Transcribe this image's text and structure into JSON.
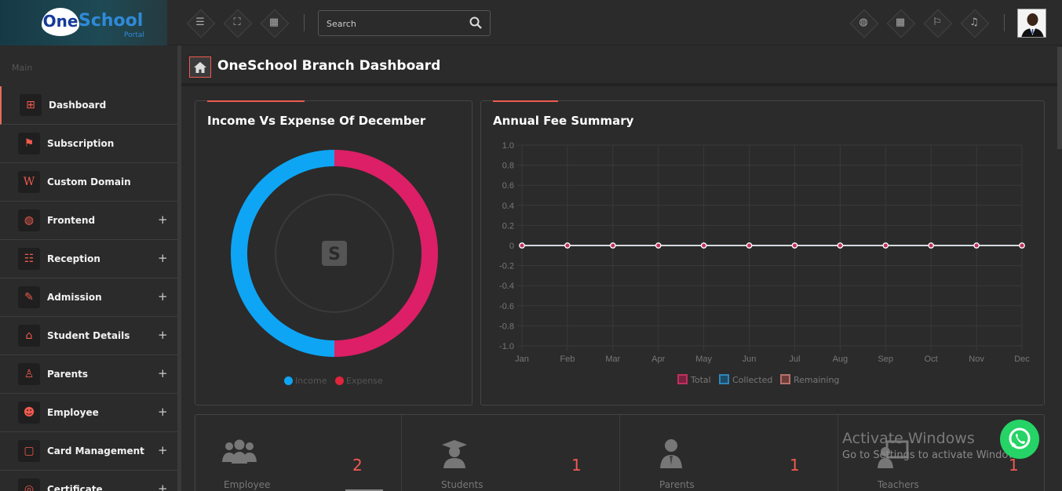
{
  "brand": {
    "one": "One",
    "school": "School",
    "portal": "Portal"
  },
  "topbar": {
    "search_placeholder": "Search",
    "left_icons": [
      "menu-icon",
      "fullscreen-icon",
      "grid-icon"
    ],
    "right_icons": [
      "globe-icon",
      "calendar-icon",
      "flag-icon",
      "bell-icon"
    ]
  },
  "sidebar": {
    "section": "Main",
    "items": [
      {
        "label": "Dashboard",
        "icon": "dashboard-icon",
        "glyph": "⊞",
        "expandable": false,
        "active": true
      },
      {
        "label": "Subscription",
        "icon": "signpost-icon",
        "glyph": "⚑",
        "expandable": false
      },
      {
        "label": "Custom Domain",
        "icon": "wordpress-icon",
        "glyph": "W",
        "expandable": false
      },
      {
        "label": "Frontend",
        "icon": "globe-icon",
        "glyph": "◍",
        "expandable": true
      },
      {
        "label": "Reception",
        "icon": "users-icon",
        "glyph": "☷",
        "expandable": true
      },
      {
        "label": "Admission",
        "icon": "edit-icon",
        "glyph": "✎",
        "expandable": true
      },
      {
        "label": "Student Details",
        "icon": "graduation-cap-icon",
        "glyph": "⌂",
        "expandable": true
      },
      {
        "label": "Parents",
        "icon": "user-icon",
        "glyph": "♙",
        "expandable": true
      },
      {
        "label": "Employee",
        "icon": "group-icon",
        "glyph": "☻",
        "expandable": true
      },
      {
        "label": "Card Management",
        "icon": "clipboard-icon",
        "glyph": "▢",
        "expandable": true
      },
      {
        "label": "Certificate",
        "icon": "certificate-icon",
        "glyph": "◎",
        "expandable": true
      }
    ],
    "expand_symbol": "+"
  },
  "page": {
    "title": "OneSchool Branch Dashboard"
  },
  "income_panel": {
    "title": "Income Vs Expense Of December",
    "legend": [
      {
        "label": "Income",
        "color": "#0ea5f5"
      },
      {
        "label": "Expense",
        "color": "#e0243c"
      }
    ],
    "center_icon": "S"
  },
  "fee_panel": {
    "title": "Annual Fee Summary",
    "legend": [
      {
        "label": "Total",
        "color": "#c0305c"
      },
      {
        "label": "Collected",
        "color": "#2f86b8"
      },
      {
        "label": "Remaining",
        "color": "#b5726a"
      }
    ]
  },
  "chart_data": [
    {
      "type": "pie",
      "title": "Income Vs Expense Of December",
      "categories": [
        "Income",
        "Expense"
      ],
      "values": [
        50,
        50
      ],
      "colors": [
        "#0ea5f5",
        "#dc1f66"
      ]
    },
    {
      "type": "line",
      "title": "Annual Fee Summary",
      "categories": [
        "Jan",
        "Feb",
        "Mar",
        "Apr",
        "May",
        "Jun",
        "Jul",
        "Aug",
        "Sep",
        "Oct",
        "Nov",
        "Dec"
      ],
      "yticks": [
        "1.0",
        "0.8",
        "0.6",
        "0.4",
        "0.2",
        "0",
        "-0.2",
        "-0.4",
        "-0.6",
        "-0.8",
        "-1.0"
      ],
      "ylim": [
        -1,
        1
      ],
      "series": [
        {
          "name": "Total",
          "values": [
            0,
            0,
            0,
            0,
            0,
            0,
            0,
            0,
            0,
            0,
            0,
            0
          ]
        },
        {
          "name": "Collected",
          "values": [
            0,
            0,
            0,
            0,
            0,
            0,
            0,
            0,
            0,
            0,
            0,
            0
          ]
        },
        {
          "name": "Remaining",
          "values": [
            0,
            0,
            0,
            0,
            0,
            0,
            0,
            0,
            0,
            0,
            0,
            0
          ]
        }
      ],
      "grid": true,
      "legend": "bottom"
    }
  ],
  "stats": [
    {
      "label": "Employee",
      "value": "2",
      "icon": "employees-icon"
    },
    {
      "label": "Students",
      "value": "1",
      "icon": "student-icon"
    },
    {
      "label": "Parents",
      "value": "1",
      "icon": "parent-icon"
    },
    {
      "label": "Teachers",
      "value": "1",
      "icon": "teacher-icon"
    }
  ],
  "watermark": {
    "line1": "Activate Windows",
    "line2": "Go to Settings to activate Windows."
  }
}
